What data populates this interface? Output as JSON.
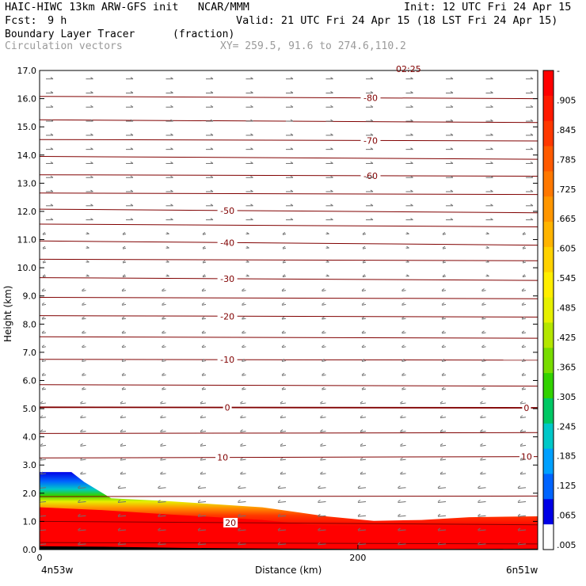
{
  "header": {
    "title_left": "HAIC-HIWC 13km ARW-GFS init   NCAR/MMM",
    "init": "Init: 12 UTC Fri 24 Apr 15",
    "fcst_label": "Fcst:",
    "fcst_value": "9 h",
    "valid": "Valid: 21 UTC Fri 24 Apr 15 (18 LST Fri 24 Apr 15)",
    "field_name": "Boundary Layer Tracer",
    "field_units": "(fraction)",
    "vector_name": "Circulation vectors",
    "cross_section": "XY= 259.5, 91.6 to 274.6,110.2",
    "top_label": "02:25"
  },
  "colors": {
    "contour": "#800000",
    "vector": "#707070",
    "terrain": "#000000"
  },
  "chart_data": {
    "type": "heatmap",
    "xlabel": "Distance (km)",
    "ylabel": "Height (km)",
    "xlim": [
      0,
      313
    ],
    "ylim": [
      0,
      17
    ],
    "x_ticks": [
      {
        "v": 0,
        "label": "0"
      },
      {
        "v": 200,
        "label": "200"
      }
    ],
    "x_end_labels": {
      "left": "4n53w",
      "right": "6n51w"
    },
    "y_ticks": [
      "0.0",
      "1.0",
      "2.0",
      "3.0",
      "4.0",
      "5.0",
      "6.0",
      "7.0",
      "8.0",
      "9.0",
      "10.0",
      "11.0",
      "12.0",
      "13.0",
      "14.0",
      "15.0",
      "16.0",
      "17.0"
    ],
    "colorbar": {
      "labels": [
        "-",
        ".905",
        ".845",
        ".785",
        ".725",
        ".665",
        ".605",
        ".545",
        ".485",
        ".425",
        ".365",
        ".305",
        ".245",
        ".185",
        ".125",
        ".065",
        ".005"
      ],
      "colors": [
        "#ff0000",
        "#ff1a00",
        "#ff3800",
        "#ff5a00",
        "#ff7800",
        "#ff9600",
        "#ffb400",
        "#ffd200",
        "#ffee00",
        "#e6f000",
        "#b4e600",
        "#78dc00",
        "#32d200",
        "#00c864",
        "#00c8c8",
        "#00a0ff",
        "#0064ff",
        "#0000e6",
        "#ffffff"
      ]
    },
    "tracer_top_km": [
      [
        0,
        2.75
      ],
      [
        20,
        2.75
      ],
      [
        28,
        2.4
      ],
      [
        45,
        1.82
      ],
      [
        80,
        1.72
      ],
      [
        140,
        1.5
      ],
      [
        180,
        1.18
      ],
      [
        210,
        1.02
      ],
      [
        240,
        1.05
      ],
      [
        270,
        1.15
      ],
      [
        313,
        1.18
      ]
    ],
    "tracer_core_km": [
      [
        0,
        1.5
      ],
      [
        40,
        1.4
      ],
      [
        80,
        1.25
      ],
      [
        140,
        1.05
      ],
      [
        180,
        0.82
      ],
      [
        220,
        0.68
      ],
      [
        260,
        0.72
      ],
      [
        313,
        0.8
      ]
    ],
    "terrain_km": [
      [
        0,
        0.12
      ],
      [
        40,
        0.1
      ],
      [
        90,
        0.06
      ],
      [
        140,
        0.04
      ],
      [
        200,
        0.02
      ],
      [
        260,
        0.02
      ],
      [
        313,
        0.03
      ]
    ],
    "temperature_contours": [
      {
        "label": "20",
        "points": [
          [
            0,
            1.0
          ],
          [
            313,
            0.88
          ]
        ],
        "label_x": 120
      },
      {
        "label": "10",
        "points": [
          [
            0,
            3.25
          ],
          [
            313,
            3.3
          ]
        ],
        "label_x": 115,
        "label_x2": 306
      },
      {
        "label": "0",
        "points": [
          [
            0,
            5.05
          ],
          [
            313,
            5.03
          ]
        ],
        "label_x": 118,
        "label_x2": 306
      },
      {
        "label": "-10",
        "points": [
          [
            0,
            6.75
          ],
          [
            313,
            6.72
          ]
        ],
        "label_x": 118
      },
      {
        "label": "-20",
        "points": [
          [
            0,
            8.3
          ],
          [
            313,
            8.25
          ]
        ],
        "label_x": 118
      },
      {
        "label": "-30",
        "points": [
          [
            0,
            9.65
          ],
          [
            313,
            9.55
          ]
        ],
        "label_x": 118
      },
      {
        "label": "-40",
        "points": [
          [
            0,
            10.95
          ],
          [
            313,
            10.8
          ]
        ],
        "label_x": 118
      },
      {
        "label": "-50",
        "points": [
          [
            0,
            12.08
          ],
          [
            313,
            11.95
          ]
        ],
        "label_x": 118
      },
      {
        "label": "-60",
        "points": [
          [
            0,
            13.3
          ],
          [
            313,
            13.25
          ]
        ],
        "label_x": 208
      },
      {
        "label": "-70",
        "points": [
          [
            0,
            14.55
          ],
          [
            313,
            14.5
          ]
        ],
        "label_x": 208
      },
      {
        "label": "-80",
        "points": [
          [
            0,
            16.08
          ],
          [
            313,
            16.0
          ]
        ],
        "label_x": 208
      },
      {
        "label": "",
        "points": [
          [
            0,
            0.25
          ],
          [
            313,
            0.2
          ]
        ]
      },
      {
        "label": "",
        "points": [
          [
            0,
            1.88
          ],
          [
            313,
            1.9
          ]
        ]
      },
      {
        "label": "",
        "points": [
          [
            0,
            4.12
          ],
          [
            313,
            4.15
          ]
        ]
      },
      {
        "label": "",
        "points": [
          [
            0,
            5.85
          ],
          [
            313,
            5.8
          ]
        ]
      },
      {
        "label": "",
        "points": [
          [
            0,
            7.55
          ],
          [
            313,
            7.5
          ]
        ]
      },
      {
        "label": "",
        "points": [
          [
            0,
            8.95
          ],
          [
            313,
            8.9
          ]
        ]
      },
      {
        "label": "",
        "points": [
          [
            0,
            10.3
          ],
          [
            313,
            10.25
          ]
        ]
      },
      {
        "label": "",
        "points": [
          [
            0,
            11.55
          ],
          [
            313,
            11.45
          ]
        ]
      },
      {
        "label": "",
        "points": [
          [
            0,
            12.65
          ],
          [
            313,
            12.6
          ]
        ]
      },
      {
        "label": "",
        "points": [
          [
            0,
            13.95
          ],
          [
            313,
            13.85
          ]
        ]
      },
      {
        "label": "",
        "points": [
          [
            0,
            15.25
          ],
          [
            313,
            15.15
          ]
        ]
      }
    ]
  }
}
